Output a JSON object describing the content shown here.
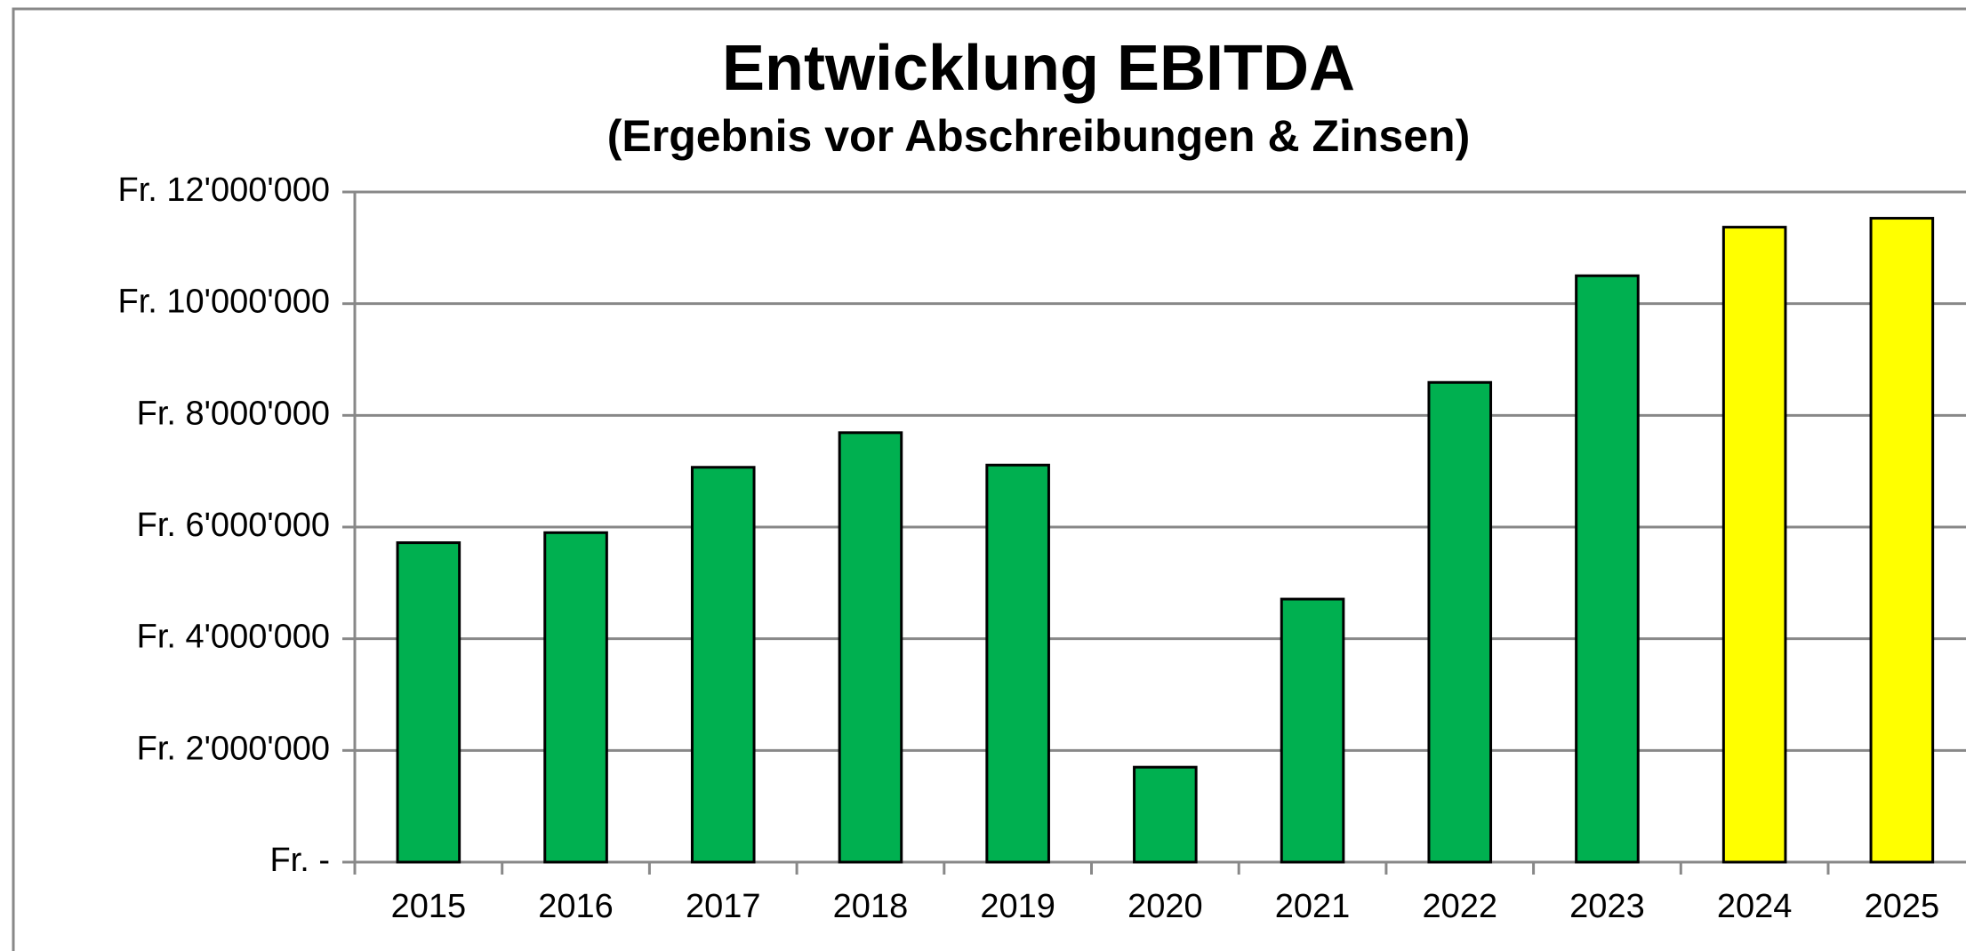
{
  "chart_data": {
    "type": "bar",
    "title": "Entwicklung  EBITDA",
    "subtitle": "(Ergebnis vor Abschreibungen & Zinsen)",
    "categories": [
      "2015",
      "2016",
      "2017",
      "2018",
      "2019",
      "2020",
      "2021",
      "2022",
      "2023",
      "2024",
      "2025"
    ],
    "values": [
      5720000,
      5900000,
      7070000,
      7690000,
      7110000,
      1700000,
      4710000,
      8590000,
      10500000,
      11370000,
      11530000
    ],
    "colors": [
      "#00b050",
      "#00b050",
      "#00b050",
      "#00b050",
      "#00b050",
      "#00b050",
      "#00b050",
      "#00b050",
      "#00b050",
      "#ffff00",
      "#ffff00"
    ],
    "ylim": [
      0,
      12000000
    ],
    "yticks": [
      {
        "value": 0,
        "label": "Fr. -"
      },
      {
        "value": 2000000,
        "label": "Fr. 2'000'000"
      },
      {
        "value": 4000000,
        "label": "Fr. 4'000'000"
      },
      {
        "value": 6000000,
        "label": "Fr. 6'000'000"
      },
      {
        "value": 8000000,
        "label": "Fr. 8'000'000"
      },
      {
        "value": 10000000,
        "label": "Fr. 10'000'000"
      },
      {
        "value": 12000000,
        "label": "Fr. 12'000'000"
      }
    ],
    "grid": true
  }
}
